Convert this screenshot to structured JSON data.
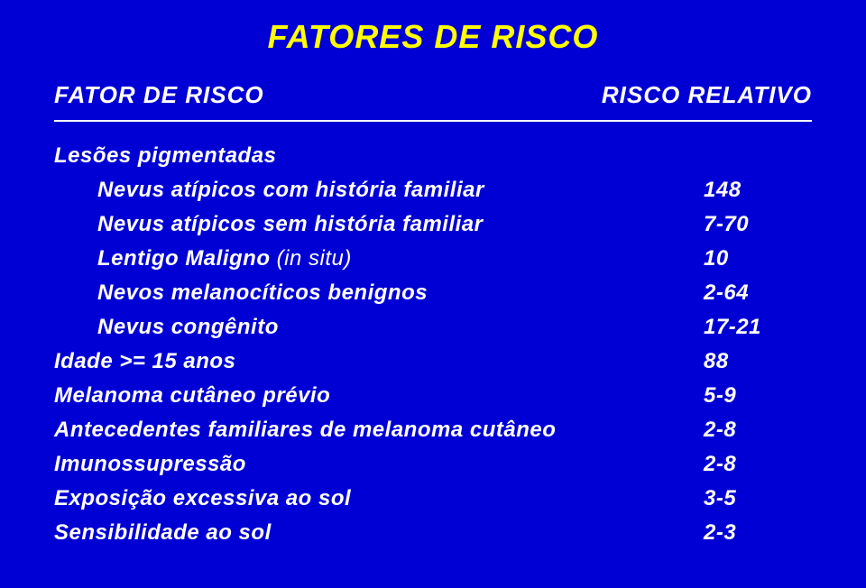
{
  "title": "FATORES DE RISCO",
  "header": {
    "left": "FATOR DE RISCO",
    "right": "RISCO RELATIVO"
  },
  "sectionLabel": "Lesões pigmentadas",
  "rows": [
    {
      "label": "Nevus atípicos com história familiar",
      "value": "148",
      "indent": true,
      "italicPart": ""
    },
    {
      "label": "Nevus atípicos sem história familiar",
      "value": "7-70",
      "indent": true,
      "italicPart": ""
    },
    {
      "label": "Lentigo Maligno ",
      "value": "10",
      "indent": true,
      "italicPart": "(in situ)"
    },
    {
      "label": "Nevos melanocíticos benignos",
      "value": "2-64",
      "indent": true,
      "italicPart": ""
    },
    {
      "label": "Nevus congênito",
      "value": "17-21",
      "indent": true,
      "italicPart": ""
    },
    {
      "label": "Idade >= 15 anos",
      "value": "88",
      "indent": false,
      "italicPart": ""
    },
    {
      "label": "Melanoma cutâneo prévio",
      "value": "5-9",
      "indent": false,
      "italicPart": ""
    },
    {
      "label": "Antecedentes familiares de melanoma cutâneo",
      "value": "2-8",
      "indent": false,
      "italicPart": ""
    },
    {
      "label": "Imunossupressão",
      "value": "2-8",
      "indent": false,
      "italicPart": ""
    },
    {
      "label": "Exposição excessiva ao sol",
      "value": "3-5",
      "indent": false,
      "italicPart": ""
    },
    {
      "label": "Sensibilidade ao sol",
      "value": "2-3",
      "indent": false,
      "italicPart": ""
    }
  ],
  "colors": {
    "background": "#0000d4",
    "title": "#ffff00",
    "text": "#ffffff",
    "rule": "#ffffff"
  },
  "typography": {
    "titleSize": 36,
    "headerSize": 26,
    "bodySize": 24,
    "fontFamily": "Verdana",
    "style": "italic bold"
  }
}
